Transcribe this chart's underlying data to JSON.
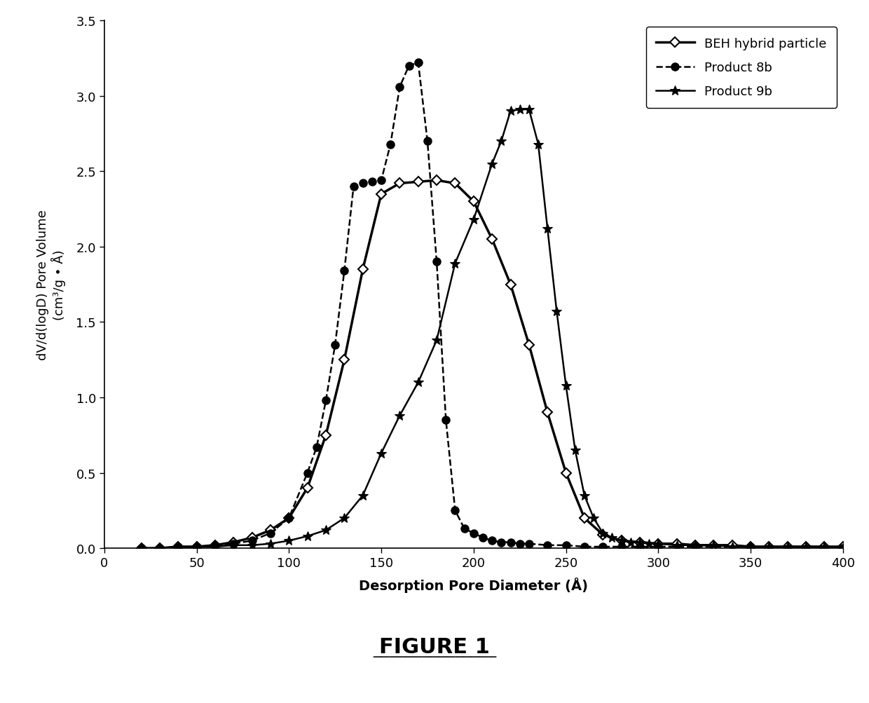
{
  "title": "FIGURE 1",
  "xlabel": "Desorption Pore Diameter (Å)",
  "ylabel": "dV/d(logD) Pore Volume",
  "ylabel2": "(cm³/g • Å)",
  "xlim": [
    0,
    400
  ],
  "ylim": [
    0,
    3.5
  ],
  "xticks": [
    0,
    50,
    100,
    150,
    200,
    250,
    300,
    350,
    400
  ],
  "yticks": [
    0.0,
    0.5,
    1.0,
    1.5,
    2.0,
    2.5,
    3.0,
    3.5
  ],
  "beh_x": [
    20,
    30,
    40,
    50,
    60,
    70,
    80,
    90,
    100,
    110,
    120,
    130,
    140,
    150,
    160,
    170,
    180,
    190,
    200,
    210,
    220,
    230,
    240,
    250,
    260,
    270,
    280,
    290,
    300,
    310,
    320,
    330,
    340,
    350,
    360,
    370,
    380,
    390,
    400
  ],
  "beh_y": [
    0.0,
    0.0,
    0.01,
    0.01,
    0.02,
    0.04,
    0.07,
    0.12,
    0.2,
    0.4,
    0.75,
    1.25,
    1.85,
    2.35,
    2.42,
    2.43,
    2.44,
    2.42,
    2.3,
    2.05,
    1.75,
    1.35,
    0.9,
    0.5,
    0.2,
    0.09,
    0.05,
    0.04,
    0.03,
    0.03,
    0.02,
    0.02,
    0.02,
    0.01,
    0.01,
    0.01,
    0.01,
    0.01,
    0.01
  ],
  "prod8b_x": [
    20,
    30,
    40,
    50,
    60,
    70,
    80,
    90,
    100,
    110,
    115,
    120,
    125,
    130,
    135,
    140,
    145,
    150,
    155,
    160,
    165,
    170,
    175,
    180,
    185,
    190,
    195,
    200,
    205,
    210,
    215,
    220,
    225,
    230,
    240,
    250,
    260,
    270,
    280,
    290,
    300,
    320,
    350,
    400
  ],
  "prod8b_y": [
    0.0,
    0.0,
    0.01,
    0.01,
    0.02,
    0.03,
    0.05,
    0.1,
    0.2,
    0.5,
    0.67,
    0.98,
    1.35,
    1.84,
    2.4,
    2.42,
    2.43,
    2.44,
    2.68,
    3.06,
    3.2,
    3.22,
    2.7,
    1.9,
    0.85,
    0.25,
    0.13,
    0.1,
    0.07,
    0.05,
    0.04,
    0.04,
    0.03,
    0.03,
    0.02,
    0.02,
    0.01,
    0.01,
    0.01,
    0.01,
    0.01,
    0.01,
    0.01,
    0.0
  ],
  "prod9b_x": [
    20,
    30,
    40,
    50,
    60,
    70,
    80,
    90,
    100,
    110,
    120,
    130,
    140,
    150,
    160,
    170,
    180,
    190,
    200,
    210,
    215,
    220,
    225,
    230,
    235,
    240,
    245,
    250,
    255,
    260,
    265,
    270,
    275,
    280,
    285,
    290,
    295,
    300,
    310,
    320,
    330,
    340,
    350,
    360,
    370,
    380,
    390,
    400
  ],
  "prod9b_y": [
    0.0,
    0.0,
    0.0,
    0.01,
    0.01,
    0.02,
    0.02,
    0.03,
    0.05,
    0.08,
    0.12,
    0.2,
    0.35,
    0.63,
    0.88,
    1.1,
    1.38,
    1.89,
    2.18,
    2.55,
    2.7,
    2.9,
    2.91,
    2.91,
    2.68,
    2.12,
    1.57,
    1.08,
    0.65,
    0.35,
    0.2,
    0.1,
    0.07,
    0.05,
    0.04,
    0.04,
    0.03,
    0.03,
    0.02,
    0.02,
    0.02,
    0.01,
    0.01,
    0.01,
    0.01,
    0.01,
    0.01,
    0.0
  ],
  "beh_color": "#000000",
  "prod8b_color": "#000000",
  "prod9b_color": "#000000",
  "beh_label": "BEH hybrid particle",
  "prod8b_label": "Product 8b",
  "prod9b_label": "Product 9b",
  "background_color": "#ffffff"
}
